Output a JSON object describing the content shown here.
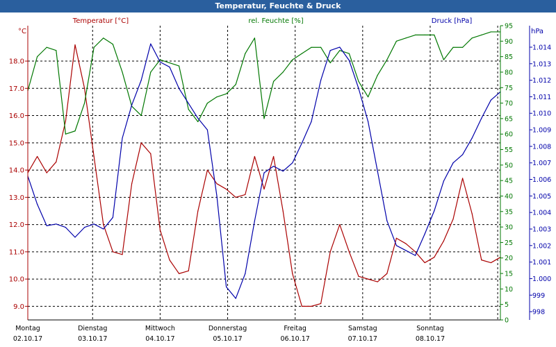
{
  "window": {
    "title": "Temperatur, Feuchte & Druck"
  },
  "colors": {
    "temperature": "#aa0000",
    "humidity": "#007700",
    "pressure": "#0000aa",
    "grid": "#000000",
    "axis_temp": "#aa0000",
    "axis_hum": "#007700",
    "axis_pres": "#0000aa"
  },
  "chart_data": {
    "type": "line",
    "title": "Temperatur, Feuchte & Druck",
    "x": [
      0,
      0.14,
      0.28,
      0.42,
      0.56,
      0.7,
      0.84,
      0.98,
      1.12,
      1.26,
      1.4,
      1.54,
      1.68,
      1.82,
      1.96,
      2.1,
      2.24,
      2.38,
      2.52,
      2.66,
      2.8,
      2.94,
      3.08,
      3.22,
      3.36,
      3.5,
      3.64,
      3.78,
      3.92,
      4.06,
      4.2,
      4.34,
      4.48,
      4.62,
      4.76,
      4.9,
      5.04,
      5.18,
      5.32,
      5.46,
      5.6,
      5.74,
      5.88,
      6.02,
      6.16,
      6.3,
      6.44,
      6.58,
      6.72,
      6.86,
      7.0
    ],
    "x_range": [
      0,
      7.0
    ],
    "x_tick_labels": [
      {
        "day": "Montag",
        "date": "02.10.17",
        "pos": 0
      },
      {
        "day": "Dienstag",
        "date": "03.10.17",
        "pos": 1
      },
      {
        "day": "Mittwoch",
        "date": "04.10.17",
        "pos": 2
      },
      {
        "day": "Donnerstag",
        "date": "05.10.17",
        "pos": 3
      },
      {
        "day": "Freitag",
        "date": "06.10.17",
        "pos": 4
      },
      {
        "day": "Samstag",
        "date": "07.10.17",
        "pos": 5
      },
      {
        "day": "Sonntag",
        "date": "08.10.17",
        "pos": 6
      }
    ],
    "series": [
      {
        "name": "Temperatur [°C]",
        "axis": "temp",
        "values": [
          13.9,
          14.5,
          13.9,
          14.3,
          15.8,
          18.6,
          17.0,
          14.5,
          12.0,
          11.0,
          10.9,
          13.5,
          15.0,
          14.6,
          11.8,
          10.7,
          10.2,
          10.3,
          12.5,
          14.0,
          13.5,
          13.3,
          13.0,
          13.1,
          14.5,
          13.3,
          14.5,
          12.5,
          10.2,
          9.0,
          9.0,
          9.1,
          11.0,
          12.0,
          11.0,
          10.1,
          10.0,
          9.9,
          10.2,
          11.5,
          11.3,
          11.0,
          10.6,
          10.8,
          11.4,
          12.2,
          13.7,
          12.4,
          10.7,
          10.6,
          10.8
        ]
      },
      {
        "name": "rel. Feuchte [%]",
        "axis": "hum",
        "values": [
          74,
          85,
          88,
          87,
          60,
          61,
          70,
          88,
          91,
          89,
          80,
          69,
          66,
          80,
          84,
          83,
          82,
          68,
          64,
          70,
          72,
          73,
          76,
          86,
          91,
          65,
          77,
          80,
          84,
          86,
          88,
          88,
          83,
          87,
          86,
          77,
          72,
          79,
          84,
          90,
          91,
          92,
          92,
          92,
          84,
          88,
          88,
          91,
          92,
          93,
          93
        ]
      },
      {
        "name": "Druck [hPa]",
        "axis": "pres",
        "values": [
          1006.2,
          1004.5,
          1003.2,
          1003.3,
          1003.1,
          1002.5,
          1003.1,
          1003.3,
          1003.0,
          1003.7,
          1008.5,
          1010.5,
          1012.0,
          1014.2,
          1013.1,
          1012.8,
          1011.5,
          1010.6,
          1009.7,
          1009.0,
          1005.0,
          999.5,
          998.8,
          1000.3,
          1003.5,
          1006.4,
          1006.8,
          1006.5,
          1007.0,
          1008.2,
          1009.5,
          1012.0,
          1013.8,
          1014.0,
          1013.2,
          1011.5,
          1009.5,
          1006.5,
          1003.5,
          1002.0,
          1001.7,
          1001.4,
          1002.7,
          1004.1,
          1005.9,
          1007.0,
          1007.5,
          1008.5,
          1009.7,
          1010.8,
          1011.3
        ]
      }
    ],
    "axes": {
      "temp": {
        "label": "°C",
        "legend": "Temperatur [°C]",
        "range": [
          8.5,
          19.3
        ],
        "ticks": [
          "9.0",
          "10.0",
          "11.0",
          "12.0",
          "13.0",
          "14.0",
          "15.0",
          "16.0",
          "17.0",
          "18.0"
        ],
        "tick_values": [
          9,
          10,
          11,
          12,
          13,
          14,
          15,
          16,
          17,
          18
        ]
      },
      "hum": {
        "label": "%",
        "legend": "rel. Feuchte [%]",
        "range": [
          0,
          95
        ],
        "ticks": [
          "0",
          "5",
          "10",
          "15",
          "20",
          "25",
          "30",
          "35",
          "40",
          "45",
          "50",
          "55",
          "60",
          "65",
          "70",
          "75",
          "80",
          "85",
          "90",
          "95"
        ],
        "tick_values": [
          0,
          5,
          10,
          15,
          20,
          25,
          30,
          35,
          40,
          45,
          50,
          55,
          60,
          65,
          70,
          75,
          80,
          85,
          90,
          95
        ]
      },
      "pres": {
        "label": "hPa",
        "legend": "Druck [hPa]",
        "range": [
          997.5,
          1015.3
        ],
        "ticks": [
          "998",
          "999",
          "1.000",
          "1.001",
          "1.002",
          "1.003",
          "1.004",
          "1.005",
          "1.006",
          "1.007",
          "1.008",
          "1.009",
          "1.010",
          "1.011",
          "1.012",
          "1.013",
          "1.014"
        ],
        "tick_values": [
          998,
          999,
          1000,
          1001,
          1002,
          1003,
          1004,
          1005,
          1006,
          1007,
          1008,
          1009,
          1010,
          1011,
          1012,
          1013,
          1014
        ]
      }
    }
  }
}
